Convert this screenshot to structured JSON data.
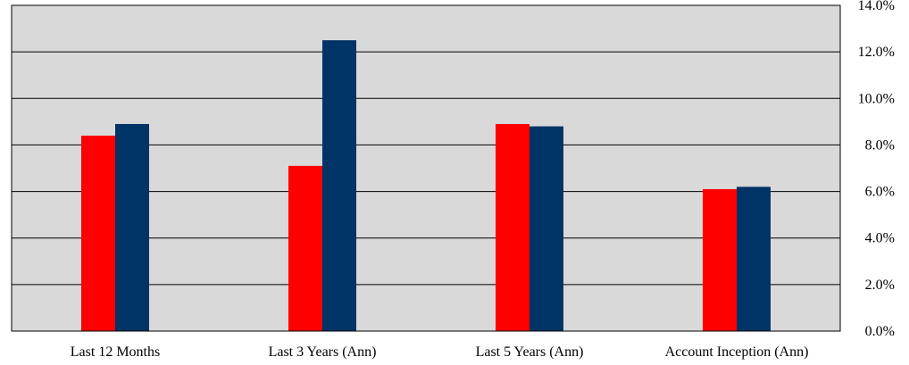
{
  "chart_data": {
    "type": "bar",
    "categories": [
      "Last 12 Months",
      "Last 3 Years (Ann)",
      "Last 5 Years (Ann)",
      "Account Inception (Ann)"
    ],
    "series": [
      {
        "values": [
          8.4,
          7.1,
          8.9,
          6.1
        ],
        "color": "#ff0000"
      },
      {
        "values": [
          8.9,
          12.5,
          8.8,
          6.2
        ],
        "color": "#003366"
      }
    ],
    "y_ticks": [
      "0.0%",
      "2.0%",
      "4.0%",
      "6.0%",
      "8.0%",
      "10.0%",
      "12.0%",
      "14.0%"
    ],
    "ylim": [
      0,
      14
    ],
    "y_axis_position": "right",
    "grid": true,
    "plot_background": "#d9d9d9",
    "legend": "none"
  }
}
